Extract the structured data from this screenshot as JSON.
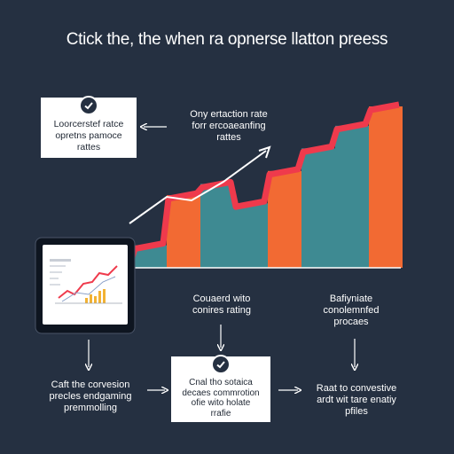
{
  "title": "Ctick the, the when ra opnerse llatton preess",
  "card_top_left": {
    "lines": [
      "Loorcerstef ratce",
      "opretns pamoce",
      "rattes"
    ],
    "icon": "check-circle-icon"
  },
  "label_top_right": {
    "lines": [
      "Ony ertaction rate",
      "forr ercoaeanfing",
      "rattes"
    ]
  },
  "label_mid_center": {
    "lines": [
      "Couaerd wito",
      "conires rating"
    ]
  },
  "label_mid_right": {
    "lines": [
      "Bafiyniate",
      "conolemnfed",
      "procaes"
    ]
  },
  "label_bottom_left": {
    "lines": [
      "Caft the corvesion",
      "precles endgaming",
      "premmolling"
    ]
  },
  "card_bottom_center": {
    "lines": [
      "Cnal tho sotaica",
      "decaes commrotion",
      "ofie wito holate",
      "rrafie"
    ],
    "icon": "check-circle-icon"
  },
  "label_bottom_right": {
    "lines": [
      "Raat to convestive",
      "ardt wit tare enatiy",
      "pfiles"
    ]
  },
  "chart_data": {
    "type": "bar",
    "values": [
      14,
      45,
      52,
      40,
      60,
      74,
      88,
      100
    ],
    "colors": [
      "#3e8a92",
      "#f26a33",
      "#3e8a92",
      "#3e8a92",
      "#f26a33",
      "#3e8a92",
      "#3e8a92",
      "#f26a33"
    ],
    "line_color": "#ef3a4c"
  },
  "colors": {
    "background": "#253041",
    "teal": "#3e8a92",
    "orange": "#f26a33",
    "red": "#ef3a4c",
    "white": "#ffffff"
  }
}
